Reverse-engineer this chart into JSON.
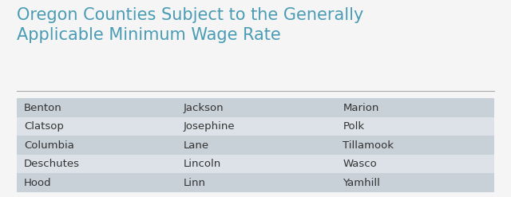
{
  "title_line1": "Oregon Counties Subject to the Generally",
  "title_line2": "Applicable Minimum Wage Rate",
  "title_color": "#4a9cb5",
  "title_fontsize": 15,
  "separator_color": "#aaaaaa",
  "background_color": "#f5f5f5",
  "cell_color_odd": "#c8d0d8",
  "cell_color_even": "#dde2e8",
  "text_color": "#333333",
  "cell_text_fontsize": 9.5,
  "columns": [
    [
      "Benton",
      "Clatsop",
      "Columbia",
      "Deschutes",
      "Hood"
    ],
    [
      "Jackson",
      "Josephine",
      "Lane",
      "Lincoln",
      "Linn"
    ],
    [
      "Marion",
      "Polk",
      "Tillamook",
      "Wasco",
      "Yamhill"
    ]
  ],
  "n_rows": 5,
  "n_cols": 3
}
